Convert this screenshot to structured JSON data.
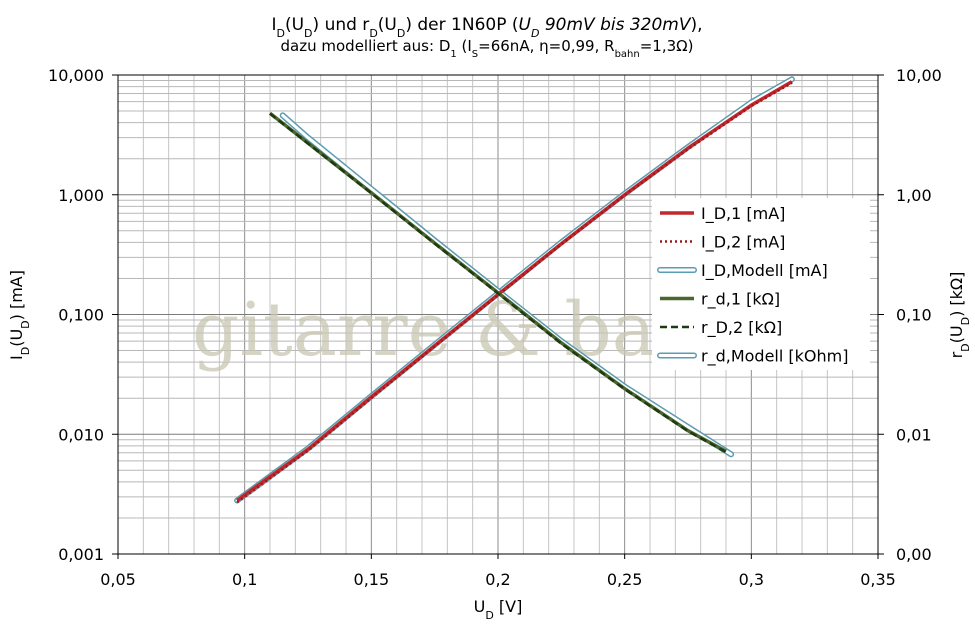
{
  "title": {
    "line1": {
      "p1": "I",
      "p1_sub": "D",
      "p2": "(U",
      "p2_sub": "D",
      "p3": ") und r",
      "p3_sub": "D",
      "p4": "(U",
      "p4_sub": "D",
      "p5": ") der 1N60P (",
      "p6_italic": "U",
      "p6_sub": "D",
      "p7_italic": " 90mV bis 320mV",
      "p8": "),"
    },
    "line2": {
      "p1": "dazu modelliert aus: D",
      "p1_sub": "1",
      "p2": " (I",
      "p2_sub": "S",
      "p3": "=66nA, η=0,99, R",
      "p3_sub": "bahn",
      "p4": "=1,3Ω)"
    }
  },
  "watermark": "gitarre & basteln",
  "chart_data": {
    "type": "line",
    "x": {
      "label_main": "U",
      "label_sub": "D",
      "label_unit": " [V]",
      "range": [
        0.05,
        0.35
      ],
      "ticks": [
        0.05,
        0.1,
        0.15,
        0.2,
        0.25,
        0.3,
        0.35
      ],
      "tick_labels": [
        "0,05",
        "0,1",
        "0,15",
        "0,2",
        "0,25",
        "0,3",
        "0,35"
      ]
    },
    "y_left": {
      "label_main": "I",
      "label_sub": "D",
      "label_paren": "(U",
      "label_paren_sub": "D",
      "label_unit": ") [mA]",
      "scale": "log",
      "range": [
        0.001,
        10
      ],
      "ticks": [
        0.001,
        0.01,
        0.1,
        1,
        10
      ],
      "tick_labels": [
        "0,001",
        "0,010",
        "0,100",
        "1,000",
        "10,000"
      ]
    },
    "y_right": {
      "label_main": "r",
      "label_sub": "D",
      "label_paren": "(U",
      "label_paren_sub": "D",
      "label_unit": ") [kΩ]",
      "scale": "log",
      "range": [
        0.001,
        10
      ],
      "ticks": [
        0.001,
        0.01,
        0.1,
        1,
        10
      ],
      "tick_labels": [
        "0,00",
        "0,01",
        "0,10",
        "1,00",
        "10,00"
      ]
    },
    "grid": true,
    "legend_position": "right",
    "series": [
      {
        "name": "I_D,1 [mA]",
        "color": "#c0282d",
        "style": "solid",
        "width": 3.5,
        "points": [
          [
            0.097,
            0.0028
          ],
          [
            0.125,
            0.0075
          ],
          [
            0.15,
            0.0205
          ],
          [
            0.175,
            0.055
          ],
          [
            0.2,
            0.147
          ],
          [
            0.225,
            0.39
          ],
          [
            0.25,
            1.0
          ],
          [
            0.275,
            2.45
          ],
          [
            0.3,
            5.6
          ],
          [
            0.316,
            8.8
          ]
        ]
      },
      {
        "name": "I_D,2 [mA]",
        "color": "#a01818",
        "style": "dotted",
        "width": 2.5,
        "points": [
          [
            0.097,
            0.0027
          ],
          [
            0.125,
            0.0073
          ],
          [
            0.15,
            0.02
          ],
          [
            0.175,
            0.054
          ],
          [
            0.2,
            0.145
          ],
          [
            0.225,
            0.385
          ],
          [
            0.25,
            0.99
          ],
          [
            0.275,
            2.4
          ],
          [
            0.3,
            5.5
          ],
          [
            0.316,
            8.6
          ]
        ]
      },
      {
        "name": "I_D,Modell [mA]",
        "color": "#5a9cb0",
        "style": "hollow",
        "width": 6,
        "points": [
          [
            0.097,
            0.0028
          ],
          [
            0.125,
            0.0076
          ],
          [
            0.15,
            0.0208
          ],
          [
            0.175,
            0.056
          ],
          [
            0.2,
            0.15
          ],
          [
            0.225,
            0.4
          ],
          [
            0.25,
            1.02
          ],
          [
            0.275,
            2.5
          ],
          [
            0.3,
            5.9
          ],
          [
            0.316,
            9.2
          ]
        ]
      },
      {
        "name": "r_d,1 [kΩ]",
        "color": "#4d6630",
        "style": "solid",
        "width": 3.5,
        "points": [
          [
            0.11,
            4.8
          ],
          [
            0.125,
            2.7
          ],
          [
            0.15,
            1.04
          ],
          [
            0.175,
            0.395
          ],
          [
            0.2,
            0.152
          ],
          [
            0.225,
            0.058
          ],
          [
            0.25,
            0.024
          ],
          [
            0.275,
            0.0107
          ],
          [
            0.29,
            0.0072
          ]
        ]
      },
      {
        "name": "r_D,2 [kΩ]",
        "color": "#1e3a12",
        "style": "dashed",
        "width": 2.5,
        "points": [
          [
            0.11,
            4.75
          ],
          [
            0.125,
            2.68
          ],
          [
            0.15,
            1.03
          ],
          [
            0.175,
            0.39
          ],
          [
            0.2,
            0.15
          ],
          [
            0.225,
            0.057
          ],
          [
            0.25,
            0.0238
          ],
          [
            0.275,
            0.0106
          ],
          [
            0.29,
            0.0071
          ]
        ]
      },
      {
        "name": "r_d,Modell [kOhm]",
        "color": "#5a9cb0",
        "style": "hollow",
        "width": 6,
        "points": [
          [
            0.115,
            4.6
          ],
          [
            0.125,
            3.0
          ],
          [
            0.15,
            1.12
          ],
          [
            0.175,
            0.415
          ],
          [
            0.2,
            0.157
          ],
          [
            0.225,
            0.06
          ],
          [
            0.25,
            0.025
          ],
          [
            0.275,
            0.0115
          ],
          [
            0.292,
            0.0068
          ]
        ]
      }
    ]
  }
}
